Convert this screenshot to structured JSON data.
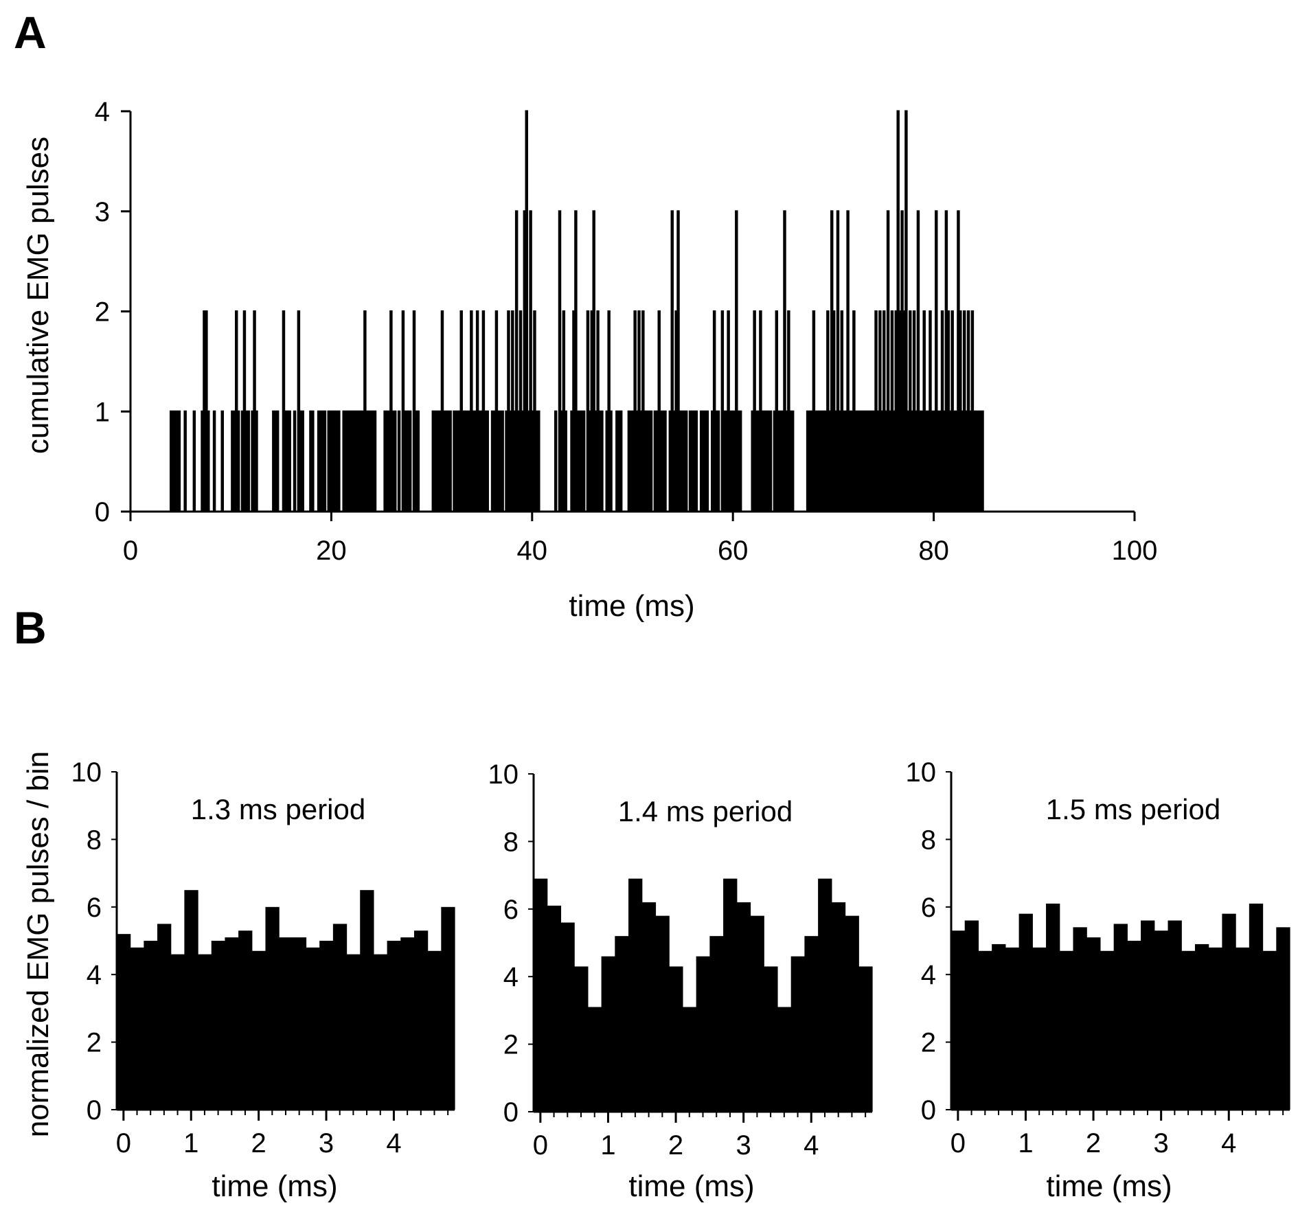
{
  "figure": {
    "panel_labels": [
      "A",
      "B"
    ]
  },
  "chart_data": [
    {
      "type": "line",
      "panel": "A",
      "title": "",
      "xlabel": "time (ms)",
      "ylabel": "cumulative EMG pulses",
      "xlim": [
        0,
        100
      ],
      "ylim": [
        0,
        4
      ],
      "x_ticks": [
        0,
        20,
        40,
        60,
        80,
        100
      ],
      "y_ticks": [
        0,
        1,
        2,
        3,
        4
      ],
      "grid": false,
      "legend": "none",
      "bin_width_ms": 0.1,
      "x_start_ms": 0,
      "values_description": "one count per 0.1 ms bin, from 0 to 100 ms",
      "values": [
        0,
        0,
        0,
        0,
        0,
        0,
        0,
        0,
        0,
        0,
        0,
        0,
        0,
        0,
        0,
        0,
        0,
        0,
        0,
        0,
        0,
        0,
        0,
        0,
        0,
        0,
        0,
        0,
        0,
        0,
        0,
        0,
        0,
        0,
        0,
        0,
        0,
        0,
        0,
        0,
        1,
        0,
        1,
        0,
        1,
        0,
        1,
        0,
        1,
        0,
        0,
        0,
        0,
        0,
        1,
        0,
        0,
        0,
        0,
        0,
        0,
        0,
        0,
        1,
        0,
        0,
        0,
        0,
        0,
        0,
        0,
        1,
        0,
        2,
        0,
        2,
        0,
        1,
        0,
        0,
        0,
        0,
        0,
        1,
        0,
        0,
        0,
        0,
        0,
        0,
        0,
        1,
        0,
        0,
        0,
        0,
        0,
        0,
        0,
        0,
        0,
        1,
        0,
        1,
        0,
        2,
        0,
        1,
        0,
        0,
        0,
        1,
        0,
        2,
        0,
        1,
        0,
        1,
        0,
        0,
        0,
        1,
        0,
        2,
        0,
        1,
        0,
        0,
        0,
        0,
        0,
        0,
        0,
        0,
        0,
        0,
        0,
        0,
        0,
        0,
        0,
        0,
        1,
        0,
        1,
        0,
        1,
        0,
        0,
        0,
        0,
        0,
        2,
        0,
        1,
        0,
        1,
        0,
        1,
        0,
        0,
        0,
        0,
        1,
        0,
        0,
        0,
        2,
        0,
        1,
        0,
        1,
        0,
        0,
        0,
        0,
        0,
        0,
        0,
        1,
        0,
        1,
        0,
        0,
        0,
        0,
        0,
        1,
        0,
        1,
        0,
        1,
        0,
        1,
        0,
        0,
        0,
        1,
        0,
        1,
        0,
        1,
        0,
        1,
        0,
        1,
        0,
        1,
        0,
        0,
        0,
        0,
        1,
        0,
        1,
        0,
        1,
        0,
        1,
        0,
        1,
        0,
        1,
        0,
        0,
        1,
        0,
        1,
        0,
        1,
        0,
        1,
        0,
        2,
        0,
        1,
        0,
        1,
        0,
        1,
        0,
        1,
        0,
        1,
        0,
        0,
        0,
        0,
        0,
        0,
        0,
        0,
        0,
        1,
        0,
        1,
        0,
        1,
        0,
        2,
        0,
        1,
        0,
        1,
        0,
        0,
        0,
        1,
        0,
        0,
        0,
        2,
        0,
        1,
        0,
        0,
        1,
        0,
        1,
        0,
        0,
        0,
        2,
        0,
        1,
        0,
        1,
        0,
        0,
        0,
        0,
        0,
        0,
        0,
        0,
        0,
        0,
        0,
        0,
        0,
        0,
        1,
        0,
        1,
        0,
        0,
        1,
        0,
        1,
        0,
        2,
        0,
        1,
        0,
        1,
        0,
        1,
        0,
        1,
        0,
        0,
        0,
        1,
        0,
        1,
        0,
        0,
        1,
        0,
        2,
        0,
        1,
        0,
        1,
        0,
        1,
        0,
        1,
        0,
        2,
        0,
        1,
        0,
        1,
        0,
        2,
        0,
        1,
        0,
        1,
        0,
        2,
        0,
        1,
        0,
        1,
        0,
        0,
        0,
        0,
        1,
        0,
        1,
        0,
        2,
        0,
        1,
        0,
        1,
        0,
        1,
        0,
        0,
        0,
        1,
        0,
        2,
        0,
        1,
        0,
        2,
        0,
        1,
        0,
        3,
        0,
        1,
        0,
        2,
        0,
        1,
        0,
        3,
        0,
        4,
        0,
        1,
        0,
        3,
        0,
        1,
        0,
        2,
        0,
        1,
        0,
        1,
        0,
        0,
        0,
        0,
        0,
        0,
        0,
        0,
        0,
        0,
        0,
        0,
        0,
        0,
        0,
        0,
        1,
        0,
        0,
        0,
        3,
        0,
        1,
        0,
        2,
        0,
        1,
        0,
        0,
        0,
        0,
        0,
        1,
        0,
        2,
        0,
        3,
        0,
        1,
        0,
        1,
        0,
        1,
        0,
        1,
        0,
        0,
        0,
        2,
        0,
        1,
        0,
        2,
        0,
        3,
        0,
        1,
        0,
        2,
        0,
        1,
        0,
        1,
        0,
        0,
        0,
        0,
        1,
        0,
        2,
        0,
        1,
        0,
        0,
        0,
        0,
        0,
        1,
        0,
        1,
        0,
        1,
        0,
        0,
        0,
        0,
        0,
        0,
        0,
        1,
        0,
        1,
        0,
        1,
        0,
        2,
        0,
        1,
        0,
        2,
        0,
        1,
        0,
        2,
        0,
        1,
        0,
        1,
        0,
        1,
        0,
        1,
        0,
        0,
        0,
        1,
        0,
        1,
        0,
        2,
        0,
        1,
        0,
        1,
        0,
        1,
        0,
        0,
        0,
        0,
        1,
        0,
        3,
        0,
        1,
        0,
        2,
        0,
        3,
        0,
        1,
        0,
        1,
        0,
        1,
        0,
        1,
        0,
        0,
        0,
        1,
        0,
        1,
        0,
        1,
        0,
        1,
        0,
        0,
        0,
        0,
        1,
        0,
        1,
        0,
        1,
        0,
        1,
        0,
        0,
        0,
        0,
        1,
        0,
        2,
        0,
        1,
        0,
        1,
        0,
        0,
        0,
        2,
        0,
        1,
        0,
        1,
        0,
        2,
        0,
        1,
        0,
        1,
        0,
        1,
        0,
        3,
        0,
        1,
        0,
        1,
        0,
        0,
        0,
        0,
        0,
        0,
        0,
        0,
        0,
        0,
        0,
        1,
        0,
        2,
        0,
        1,
        0,
        1,
        0,
        2,
        0,
        1,
        0,
        1,
        0,
        1,
        0,
        1,
        0,
        1,
        0,
        0,
        0,
        1,
        0,
        2,
        0,
        1,
        0,
        1,
        0,
        1,
        0,
        3,
        0,
        1,
        0,
        2,
        0,
        1,
        0,
        1,
        0,
        0,
        0,
        0,
        0,
        0,
        0,
        0,
        0,
        0,
        0,
        0,
        0,
        0,
        1,
        0,
        1,
        0,
        1,
        0,
        2,
        0,
        1,
        0,
        1,
        0,
        1,
        0,
        1,
        0,
        1,
        0,
        1,
        0,
        2,
        0,
        1,
        0,
        3,
        0,
        2,
        0,
        1,
        0,
        3,
        0,
        1,
        0,
        2,
        0,
        1,
        0,
        1,
        0,
        3,
        0,
        1,
        0,
        1,
        0,
        2,
        0,
        1,
        0,
        1,
        0,
        1,
        0,
        1,
        0,
        1,
        0,
        1,
        0,
        1,
        0,
        1,
        0,
        1,
        0,
        1,
        0,
        2,
        0,
        1,
        0,
        2,
        0,
        1,
        0,
        2,
        0,
        1,
        0,
        3,
        0,
        1,
        0,
        2,
        0,
        1,
        0,
        2,
        0,
        4,
        0,
        2,
        0,
        3,
        0,
        2,
        0,
        4,
        0,
        1,
        0,
        2,
        0,
        1,
        0,
        2,
        0,
        1,
        0,
        3,
        0,
        1,
        0,
        1,
        0,
        2,
        0,
        1,
        0,
        1,
        0,
        2,
        0,
        1,
        0,
        1,
        0,
        3,
        0,
        1,
        0,
        1,
        0,
        2,
        0,
        1,
        0,
        3,
        0,
        2,
        0,
        1,
        0,
        2,
        0,
        1,
        0,
        1,
        0,
        3,
        0,
        2,
        0,
        1,
        0,
        2,
        0,
        1,
        0,
        2,
        0,
        1,
        0,
        2,
        0,
        1,
        0,
        1,
        0,
        1,
        0,
        1,
        0,
        1,
        0,
        0,
        0,
        0,
        0,
        0,
        0,
        0,
        0,
        0,
        0,
        0,
        0,
        0,
        0,
        0,
        0,
        0,
        0,
        0,
        0,
        0,
        0,
        0,
        0,
        0,
        0,
        0,
        0,
        0,
        0,
        0,
        0,
        0,
        0,
        0,
        0,
        0,
        0,
        0,
        0,
        0,
        0,
        0,
        0,
        0,
        0,
        0,
        0,
        0,
        0,
        0,
        0,
        0,
        0,
        0,
        0,
        0,
        0,
        0,
        0,
        0,
        0,
        0,
        0,
        0,
        0,
        0,
        0,
        0,
        0,
        0,
        0,
        0,
        0,
        0,
        0,
        0,
        0,
        0,
        0,
        0,
        0,
        0,
        0,
        0,
        0,
        0,
        0,
        0,
        0,
        0,
        0,
        0,
        0,
        0,
        0,
        0,
        0,
        0,
        0,
        0,
        0,
        0,
        0,
        0,
        0,
        0,
        0,
        0,
        0,
        0,
        0,
        0,
        0,
        0,
        0,
        0,
        0,
        0,
        0,
        0,
        0,
        0,
        0,
        0,
        0,
        0,
        0,
        0,
        0,
        0,
        0,
        0,
        0,
        0,
        0,
        0,
        0,
        0,
        0,
        0,
        0,
        0,
        0,
        0,
        0
      ]
    },
    {
      "type": "bar",
      "panel": "B",
      "title": "1.3 ms period",
      "xlabel": "time (ms)",
      "ylabel": "normalized EMG pulses / bin",
      "xlim": [
        -0.1,
        4.9
      ],
      "ylim": [
        0,
        10
      ],
      "x_ticks": [
        0,
        1,
        2,
        3,
        4
      ],
      "y_ticks": [
        0,
        2,
        4,
        6,
        8,
        10
      ],
      "bin_width_ms": 0.2,
      "x_start_ms": -0.1,
      "values": [
        5.2,
        4.8,
        5.0,
        5.5,
        4.6,
        6.5,
        4.6,
        5.0,
        5.1,
        5.3,
        4.7,
        6.0,
        5.1,
        5.1,
        4.8,
        5.0,
        5.5,
        4.6,
        6.5,
        4.6,
        5.0,
        5.1,
        5.3,
        4.7,
        6.0
      ]
    },
    {
      "type": "bar",
      "panel": "B",
      "title": "1.4 ms period",
      "xlabel": "time (ms)",
      "ylabel": "",
      "xlim": [
        -0.1,
        4.9
      ],
      "ylim": [
        0,
        10
      ],
      "x_ticks": [
        0,
        1,
        2,
        3,
        4
      ],
      "y_ticks": [
        0,
        2,
        4,
        6,
        8,
        10
      ],
      "bin_width_ms": 0.2,
      "x_start_ms": -0.1,
      "values": [
        6.9,
        6.1,
        5.6,
        4.3,
        3.1,
        4.6,
        5.2,
        6.9,
        6.2,
        5.8,
        4.3,
        3.1,
        4.6,
        5.2,
        6.9,
        6.2,
        5.8,
        4.3,
        3.1,
        4.6,
        5.2,
        6.9,
        6.2,
        5.8,
        4.3
      ]
    },
    {
      "type": "bar",
      "panel": "B",
      "title": "1.5 ms period",
      "xlabel": "time (ms)",
      "ylabel": "",
      "xlim": [
        -0.1,
        4.9
      ],
      "ylim": [
        0,
        10
      ],
      "x_ticks": [
        0,
        1,
        2,
        3,
        4
      ],
      "y_ticks": [
        0,
        2,
        4,
        6,
        8,
        10
      ],
      "bin_width_ms": 0.2,
      "x_start_ms": -0.1,
      "values": [
        5.3,
        5.6,
        4.7,
        4.9,
        4.8,
        5.8,
        4.8,
        6.1,
        4.7,
        5.4,
        5.1,
        4.7,
        5.5,
        5.0,
        5.6,
        5.3,
        5.6,
        4.7,
        4.9,
        4.8,
        5.8,
        4.8,
        6.1,
        4.7,
        5.4
      ]
    }
  ]
}
